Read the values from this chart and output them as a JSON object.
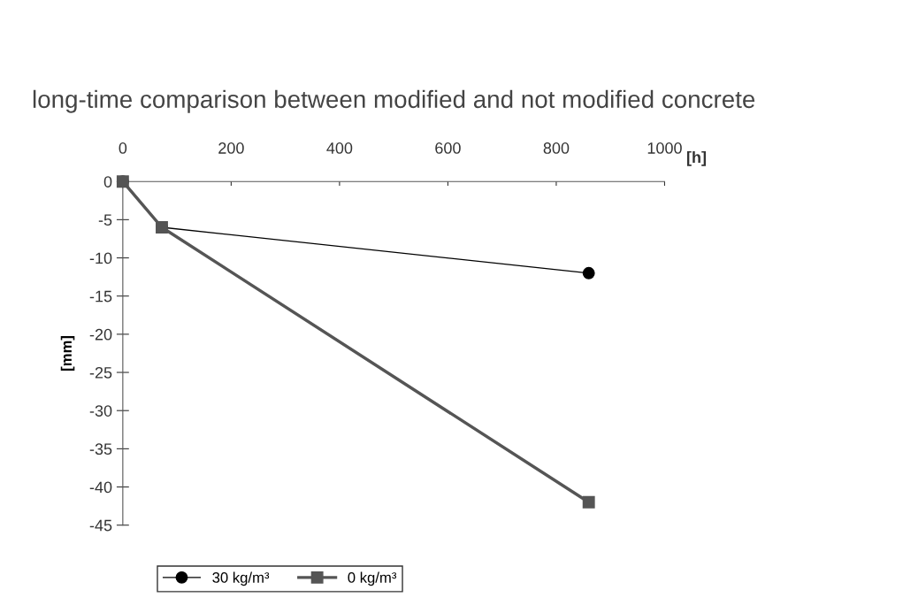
{
  "chart_data": {
    "type": "line",
    "title": "long-time comparison between modified and not modified concrete",
    "xlabel": "[h]",
    "ylabel": "[mm]",
    "series": [
      {
        "name": "30 kg/m³",
        "color": "#000000",
        "marker": "circle",
        "x": [
          0,
          72,
          860
        ],
        "values": [
          0,
          -6,
          -12
        ]
      },
      {
        "name": "0 kg/m³",
        "color": "#555555",
        "marker": "square",
        "x": [
          0,
          72,
          860
        ],
        "values": [
          0,
          -6,
          -42
        ]
      }
    ],
    "xlim": [
      0,
      1000
    ],
    "xticks": [
      0,
      200,
      400,
      600,
      800,
      1000
    ],
    "ylim": [
      -45,
      0
    ],
    "yticks": [
      0,
      -5,
      -10,
      -15,
      -20,
      -25,
      -30,
      -35,
      -40,
      -45
    ],
    "grid": false,
    "legend": "bottom",
    "line_style": "solid"
  }
}
